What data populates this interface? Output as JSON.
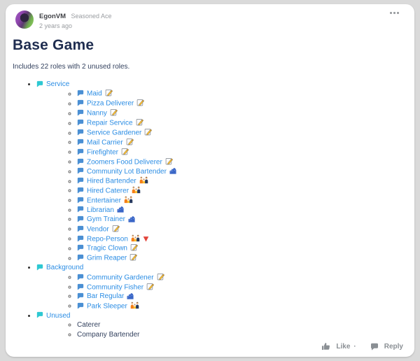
{
  "colors": {
    "page_bg": "#dadada",
    "card_bg": "#ffffff",
    "link": "#2b8de4",
    "group_bubble": "#2ec8d2",
    "item_bubble": "#4a8fd3",
    "title_text": "#1f2d50",
    "body_text": "#33415e",
    "muted_text": "#9a9da1",
    "footer_gray": "#8a8f94",
    "cityscape_blue": "#3a66c6",
    "triangle_red": "#e2453c",
    "memo_pencil": "#fbbc2c"
  },
  "post": {
    "author": "EgonVM",
    "author_rank": "Seasoned Ace",
    "timestamp": "2 years ago",
    "title": "Base Game",
    "subtitle": "Includes 22 roles with 2 unused roles.",
    "actions": {
      "like_label": "Like",
      "like_suffix": "·",
      "reply_label": "Reply"
    }
  },
  "icons": {
    "menu": "ellipsis-icon",
    "like": "thumbs-up-icon",
    "reply": "reply-bubble-icon",
    "link_prefix": "speech-bubble-icon",
    "role_icons": [
      "memo",
      "cityscape",
      "people-group",
      "red-triangle"
    ]
  },
  "list": {
    "groups": [
      {
        "label": "Service",
        "is_link": true,
        "items": [
          {
            "label": "Maid",
            "is_link": true,
            "icons": [
              "memo"
            ]
          },
          {
            "label": "Pizza Deliverer",
            "is_link": true,
            "icons": [
              "memo"
            ]
          },
          {
            "label": "Nanny",
            "is_link": true,
            "icons": [
              "memo"
            ]
          },
          {
            "label": "Repair Service",
            "is_link": true,
            "icons": [
              "memo"
            ]
          },
          {
            "label": "Service Gardener",
            "is_link": true,
            "icons": [
              "memo"
            ]
          },
          {
            "label": "Mail Carrier",
            "is_link": true,
            "icons": [
              "memo"
            ]
          },
          {
            "label": "Firefighter",
            "is_link": true,
            "icons": [
              "memo"
            ]
          },
          {
            "label": "Zoomers Food Deliverer",
            "is_link": true,
            "icons": [
              "memo"
            ]
          },
          {
            "label": "Community Lot Bartender",
            "is_link": true,
            "icons": [
              "cityscape"
            ]
          },
          {
            "label": "Hired Bartender",
            "is_link": true,
            "icons": [
              "people-group"
            ]
          },
          {
            "label": "Hired Caterer",
            "is_link": true,
            "icons": [
              "people-group"
            ]
          },
          {
            "label": "Entertainer",
            "is_link": true,
            "icons": [
              "people-group"
            ]
          },
          {
            "label": "Librarian",
            "is_link": true,
            "icons": [
              "cityscape"
            ]
          },
          {
            "label": "Gym Trainer",
            "is_link": true,
            "icons": [
              "cityscape"
            ]
          },
          {
            "label": "Vendor",
            "is_link": true,
            "icons": [
              "memo"
            ]
          },
          {
            "label": "Repo-Person",
            "is_link": true,
            "icons": [
              "people-group",
              "red-triangle"
            ]
          },
          {
            "label": "Tragic Clown",
            "is_link": true,
            "icons": [
              "memo"
            ]
          },
          {
            "label": "Grim Reaper",
            "is_link": true,
            "icons": [
              "memo"
            ]
          }
        ]
      },
      {
        "label": "Background",
        "is_link": true,
        "items": [
          {
            "label": "Community Gardener",
            "is_link": true,
            "icons": [
              "memo"
            ]
          },
          {
            "label": "Community Fisher",
            "is_link": true,
            "icons": [
              "memo"
            ]
          },
          {
            "label": "Bar Regular",
            "is_link": true,
            "icons": [
              "cityscape"
            ]
          },
          {
            "label": "Park Sleeper",
            "is_link": true,
            "icons": [
              "people-group"
            ]
          }
        ]
      },
      {
        "label": "Unused",
        "is_link": true,
        "items": [
          {
            "label": "Caterer",
            "is_link": false,
            "icons": []
          },
          {
            "label": "Company Bartender",
            "is_link": false,
            "icons": []
          }
        ]
      }
    ]
  }
}
